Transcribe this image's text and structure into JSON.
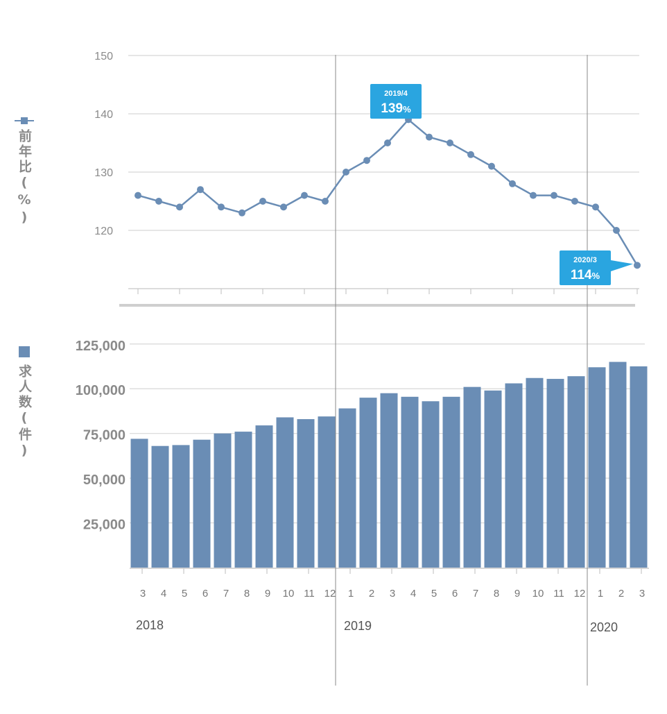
{
  "colors": {
    "series": "#6a8db5",
    "callout": "#2aa5e0",
    "grid": "#d8d8d8",
    "axis": "#c8c8c8",
    "divider": "#cfcfcf",
    "year_line": "#8a8a8a",
    "tick_text": "#8a8a8a",
    "year_text": "#555555"
  },
  "legend": {
    "line_label": "前年比(%)",
    "bar_label": "求人数(件)"
  },
  "years": [
    {
      "label": "2018",
      "start_index": 0
    },
    {
      "label": "2019",
      "start_index": 10
    },
    {
      "label": "2020",
      "start_index": 22
    }
  ],
  "chart_data": [
    {
      "type": "line",
      "ylabel": "前年比(%)",
      "ylim": [
        110,
        150
      ],
      "yticks": [
        120,
        130,
        140,
        150
      ],
      "grid": true,
      "x": [
        "3",
        "4",
        "5",
        "6",
        "7",
        "8",
        "9",
        "10",
        "11",
        "12",
        "1",
        "2",
        "3",
        "4",
        "5",
        "6",
        "7",
        "8",
        "9",
        "10",
        "11",
        "12",
        "1",
        "2",
        "3"
      ],
      "series": [
        {
          "values": [
            126,
            125,
            124,
            127,
            124,
            123,
            125,
            124,
            126,
            125,
            130,
            132,
            135,
            139,
            136,
            135,
            133,
            131,
            128,
            126,
            126,
            125,
            124,
            120,
            114
          ]
        }
      ],
      "annotations": [
        {
          "index": 13,
          "label": "2019/4",
          "value_text": "139",
          "unit": "%"
        },
        {
          "index": 24,
          "label": "2020/3",
          "value_text": "114",
          "unit": "%"
        }
      ]
    },
    {
      "type": "bar",
      "ylabel": "求人数(件)",
      "ylim": [
        0,
        135000
      ],
      "yticks": [
        25000,
        50000,
        75000,
        100000,
        125000
      ],
      "ytick_labels": [
        "25,000",
        "50,000",
        "75,000",
        "100,000",
        "125,000"
      ],
      "grid": true,
      "categories": [
        "3",
        "4",
        "5",
        "6",
        "7",
        "8",
        "9",
        "10",
        "11",
        "12",
        "1",
        "2",
        "3",
        "4",
        "5",
        "6",
        "7",
        "8",
        "9",
        "10",
        "11",
        "12",
        "1",
        "2",
        "3"
      ],
      "series": [
        {
          "values": [
            72000,
            68000,
            68500,
            71500,
            75000,
            76000,
            79500,
            84000,
            83000,
            84500,
            89000,
            95000,
            97500,
            95500,
            93000,
            95500,
            101000,
            99000,
            103000,
            106000,
            105500,
            107000,
            112000,
            115000,
            112500
          ]
        }
      ]
    }
  ]
}
